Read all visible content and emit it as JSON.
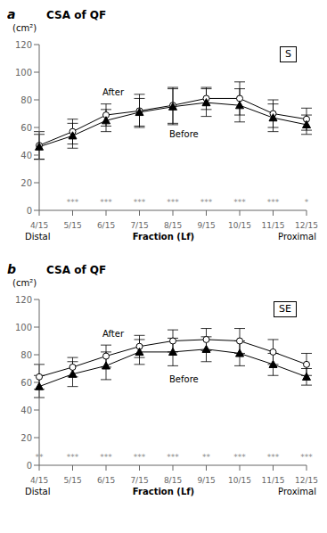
{
  "chart_data": [
    {
      "type": "line",
      "title": "CSA of QF",
      "ylabel": "(cm²)",
      "xlabel": "Fraction (Lf)",
      "categories": [
        "4/15",
        "5/15",
        "6/15",
        "7/15",
        "8/15",
        "9/15",
        "10/15",
        "11/15",
        "12/15"
      ],
      "series": [
        {
          "name": "After",
          "color": "black",
          "marker": "circle",
          "line_style": "solid",
          "values": [
            47,
            57,
            69,
            72,
            76,
            81,
            81,
            70,
            66
          ],
          "errors": [
            10,
            9,
            8,
            12,
            13,
            8,
            12,
            10,
            8
          ]
        },
        {
          "name": "Before",
          "color": "black",
          "marker": "triangle",
          "line_style": "solid",
          "values": [
            46,
            54,
            65,
            71,
            75,
            78,
            76,
            67,
            62
          ],
          "errors": [
            9,
            9,
            8,
            10,
            13,
            10,
            12,
            10,
            7
          ]
        }
      ],
      "annotations": [
        {
          "text": "a"
        },
        {
          "text": "S"
        },
        {
          "text": "Distal"
        },
        {
          "text": "Proximal"
        },
        {
          "text": "***",
          "x": "5/15"
        },
        {
          "text": "***",
          "x": "6/15"
        },
        {
          "text": "***",
          "x": "7/15"
        },
        {
          "text": "***",
          "x": "8/15"
        },
        {
          "text": "***",
          "x": "9/15"
        },
        {
          "text": "***",
          "x": "10/15"
        },
        {
          "text": "***",
          "x": "11/15"
        },
        {
          "text": "*",
          "x": "12/15"
        }
      ],
      "ylim": [
        0,
        120
      ],
      "yticks": [
        0,
        20,
        40,
        60,
        80,
        100,
        120
      ],
      "grid": false
    },
    {
      "type": "line",
      "title": "CSA of QF",
      "ylabel": "(cm²)",
      "xlabel": "Fraction (Lf)",
      "categories": [
        "4/15",
        "5/15",
        "6/15",
        "7/15",
        "8/15",
        "9/15",
        "10/15",
        "11/15",
        "12/15"
      ],
      "series": [
        {
          "name": "After",
          "color": "black",
          "marker": "circle",
          "line_style": "solid",
          "values": [
            64,
            71,
            79,
            86,
            90,
            91,
            90,
            82,
            73
          ],
          "errors": [
            9,
            7,
            8,
            8,
            8,
            8,
            9,
            9,
            8
          ]
        },
        {
          "name": "Before",
          "color": "black",
          "marker": "triangle",
          "line_style": "solid",
          "values": [
            57,
            66,
            72,
            82,
            82,
            84,
            81,
            73,
            64
          ],
          "errors": [
            8,
            9,
            10,
            9,
            10,
            9,
            9,
            8,
            6
          ]
        }
      ],
      "annotations": [
        {
          "text": "b"
        },
        {
          "text": "SE"
        },
        {
          "text": "Distal"
        },
        {
          "text": "Proximal"
        },
        {
          "text": "**",
          "x": "4/15"
        },
        {
          "text": "***",
          "x": "5/15"
        },
        {
          "text": "***",
          "x": "6/15"
        },
        {
          "text": "***",
          "x": "7/15"
        },
        {
          "text": "***",
          "x": "8/15"
        },
        {
          "text": "**",
          "x": "9/15"
        },
        {
          "text": "***",
          "x": "10/15"
        },
        {
          "text": "***",
          "x": "11/15"
        },
        {
          "text": "***",
          "x": "12/15"
        }
      ],
      "ylim": [
        0,
        120
      ],
      "yticks": [
        0,
        20,
        40,
        60,
        80,
        100,
        120
      ],
      "grid": false
    }
  ]
}
